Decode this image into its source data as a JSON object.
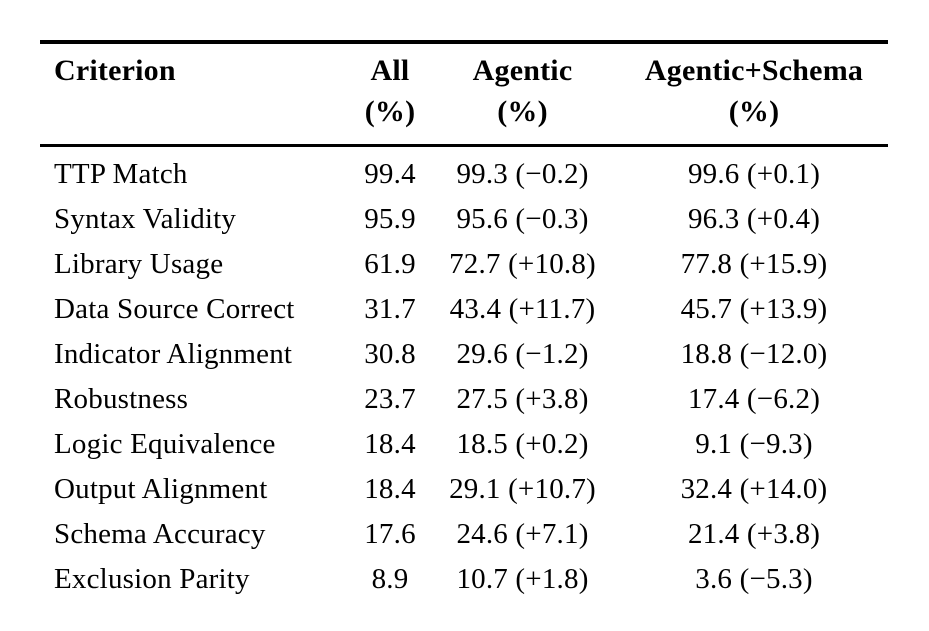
{
  "page": {
    "background_color": "#ffffff",
    "text_color": "#000000",
    "rule_color": "#000000"
  },
  "table": {
    "header": [
      {
        "label": "Criterion",
        "sublabel": ""
      },
      {
        "label": "All",
        "sublabel": "(%)"
      },
      {
        "label": "Agentic",
        "sublabel": "(%)"
      },
      {
        "label": "Agentic+Schema",
        "sublabel": "(%)"
      }
    ],
    "rows": [
      {
        "criterion": "TTP Match",
        "all": "99.4",
        "agentic": "99.3 (−0.2)",
        "agentic_schema": "99.6 (+0.1)"
      },
      {
        "criterion": "Syntax Validity",
        "all": "95.9",
        "agentic": "95.6 (−0.3)",
        "agentic_schema": "96.3 (+0.4)"
      },
      {
        "criterion": "Library Usage",
        "all": "61.9",
        "agentic": "72.7 (+10.8)",
        "agentic_schema": "77.8 (+15.9)"
      },
      {
        "criterion": "Data Source Correct",
        "all": "31.7",
        "agentic": "43.4 (+11.7)",
        "agentic_schema": "45.7 (+13.9)"
      },
      {
        "criterion": "Indicator Alignment",
        "all": "30.8",
        "agentic": "29.6 (−1.2)",
        "agentic_schema": "18.8 (−12.0)"
      },
      {
        "criterion": "Robustness",
        "all": "23.7",
        "agentic": "27.5 (+3.8)",
        "agentic_schema": "17.4 (−6.2)"
      },
      {
        "criterion": "Logic Equivalence",
        "all": "18.4",
        "agentic": "18.5 (+0.2)",
        "agentic_schema": "9.1 (−9.3)"
      },
      {
        "criterion": "Output Alignment",
        "all": "18.4",
        "agentic": "29.1 (+10.7)",
        "agentic_schema": "32.4 (+14.0)"
      },
      {
        "criterion": "Schema Accuracy",
        "all": "17.6",
        "agentic": "24.6 (+7.1)",
        "agentic_schema": "21.4 (+3.8)"
      },
      {
        "criterion": "Exclusion Parity",
        "all": "8.9",
        "agentic": "10.7 (+1.8)",
        "agentic_schema": "3.6 (−5.3)"
      }
    ]
  }
}
